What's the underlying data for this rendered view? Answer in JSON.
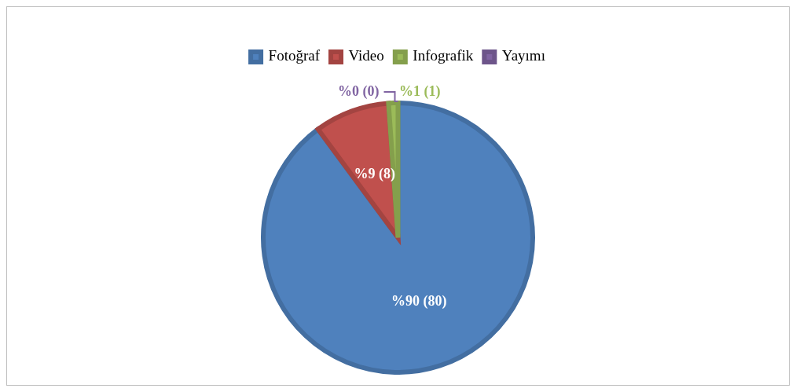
{
  "chart_data": {
    "type": "pie",
    "categories": [
      "Fotoğraf",
      "Video",
      "Infografik",
      "Yayımı"
    ],
    "values": [
      80,
      8,
      1,
      0
    ],
    "colors": [
      "#4f81bd",
      "#c0504d",
      "#9bbb59",
      "#8064a2"
    ],
    "value_labels": [
      "%90 (80)",
      "%9 (8)",
      "%1 (1)",
      "%0 (0)"
    ],
    "legend": "top"
  }
}
